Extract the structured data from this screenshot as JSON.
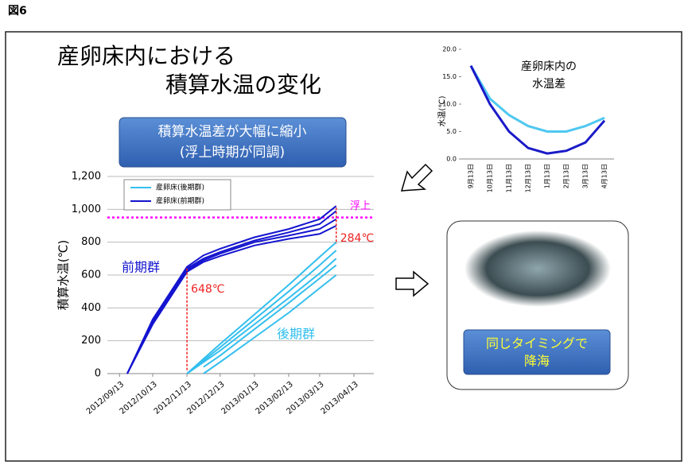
{
  "header": {
    "figure": "図6",
    "title_lines": [
      "産卵床内における",
      "積算水温の変化"
    ]
  },
  "callout": {
    "lines": [
      "積算水温差が大幅に縮小",
      "(浮上時期が同調)"
    ]
  },
  "photo_box": {
    "lines": [
      "同じタイミングで",
      "降海"
    ]
  },
  "chart_data": [
    {
      "type": "line",
      "y_label": "積算水温(℃)",
      "x": [
        "2012/09/20",
        "2012/10/13",
        "2012/11/13",
        "2012/11/28",
        "2012/12/13",
        "2013/01/13",
        "2013/02/13",
        "2013/03/13",
        "2013/03/28"
      ],
      "xlim": [
        "2012/09/02",
        "2013/05/01"
      ],
      "xticks": [
        "2012/09/13",
        "2012/10/13",
        "2012/11/13",
        "2012/12/13",
        "2013/01/13",
        "2013/02/13",
        "2013/03/13",
        "2013/04/13"
      ],
      "ylim": [
        0,
        1200
      ],
      "yticks": [
        0,
        200,
        400,
        600,
        800,
        {
          "value": 1000,
          "label": "1,000"
        },
        {
          "value": 1200,
          "label": "1,200"
        }
      ],
      "grid": true,
      "series": [
        {
          "name": "産卵床(後期群)",
          "color": "#33bfee",
          "lines": [
            [
              null,
              null,
              0,
              90,
              180,
              360,
              540,
              710,
              800
            ],
            [
              null,
              null,
              0,
              80,
              160,
              330,
              500,
              660,
              750
            ],
            [
              null,
              null,
              0,
              70,
              140,
              300,
              460,
              610,
              700
            ],
            [
              null,
              null,
              null,
              40,
              110,
              270,
              430,
              580,
              660
            ],
            [
              null,
              null,
              null,
              0,
              70,
              220,
              370,
              520,
              600
            ]
          ]
        },
        {
          "name": "産卵床(前期群)",
          "color": "#1414d0",
          "lines": [
            [
              0,
              330,
              650,
              720,
              760,
              830,
              880,
              940,
              1020
            ],
            [
              0,
              320,
              640,
              700,
              740,
              810,
              860,
              910,
              990
            ],
            [
              0,
              310,
              630,
              690,
              730,
              800,
              840,
              880,
              940
            ],
            [
              0,
              300,
              620,
              680,
              715,
              780,
              820,
              850,
              900
            ]
          ]
        }
      ],
      "threshold": {
        "value": 950,
        "label": "浮上",
        "color": "#ff00ff"
      },
      "annotations": [
        "前期群",
        "後期群",
        "648℃",
        "284℃"
      ]
    },
    {
      "type": "line",
      "title_lines": [
        "産卵床内の",
        "水温差"
      ],
      "y_label": "水温(℃)",
      "categories": [
        "9月13日",
        "10月13日",
        "11月13日",
        "12月13日",
        "1月13日",
        "2月13日",
        "3月13日",
        "4月13日"
      ],
      "ylim": [
        0,
        20
      ],
      "yticks": [
        {
          "value": 0,
          "label": "0.0"
        },
        {
          "value": 5,
          "label": "5.0"
        },
        {
          "value": 10,
          "label": "10.0"
        },
        {
          "value": 15,
          "label": "15.0"
        },
        {
          "value": 20,
          "label": "20.0"
        }
      ],
      "series": [
        {
          "color": "#4fc8f0",
          "values": [
            17,
            11,
            8,
            6,
            5,
            5,
            6,
            7.5
          ]
        },
        {
          "color": "#1a1ac8",
          "values": [
            17,
            10,
            5,
            2,
            1,
            1.5,
            3,
            7
          ]
        }
      ]
    }
  ]
}
